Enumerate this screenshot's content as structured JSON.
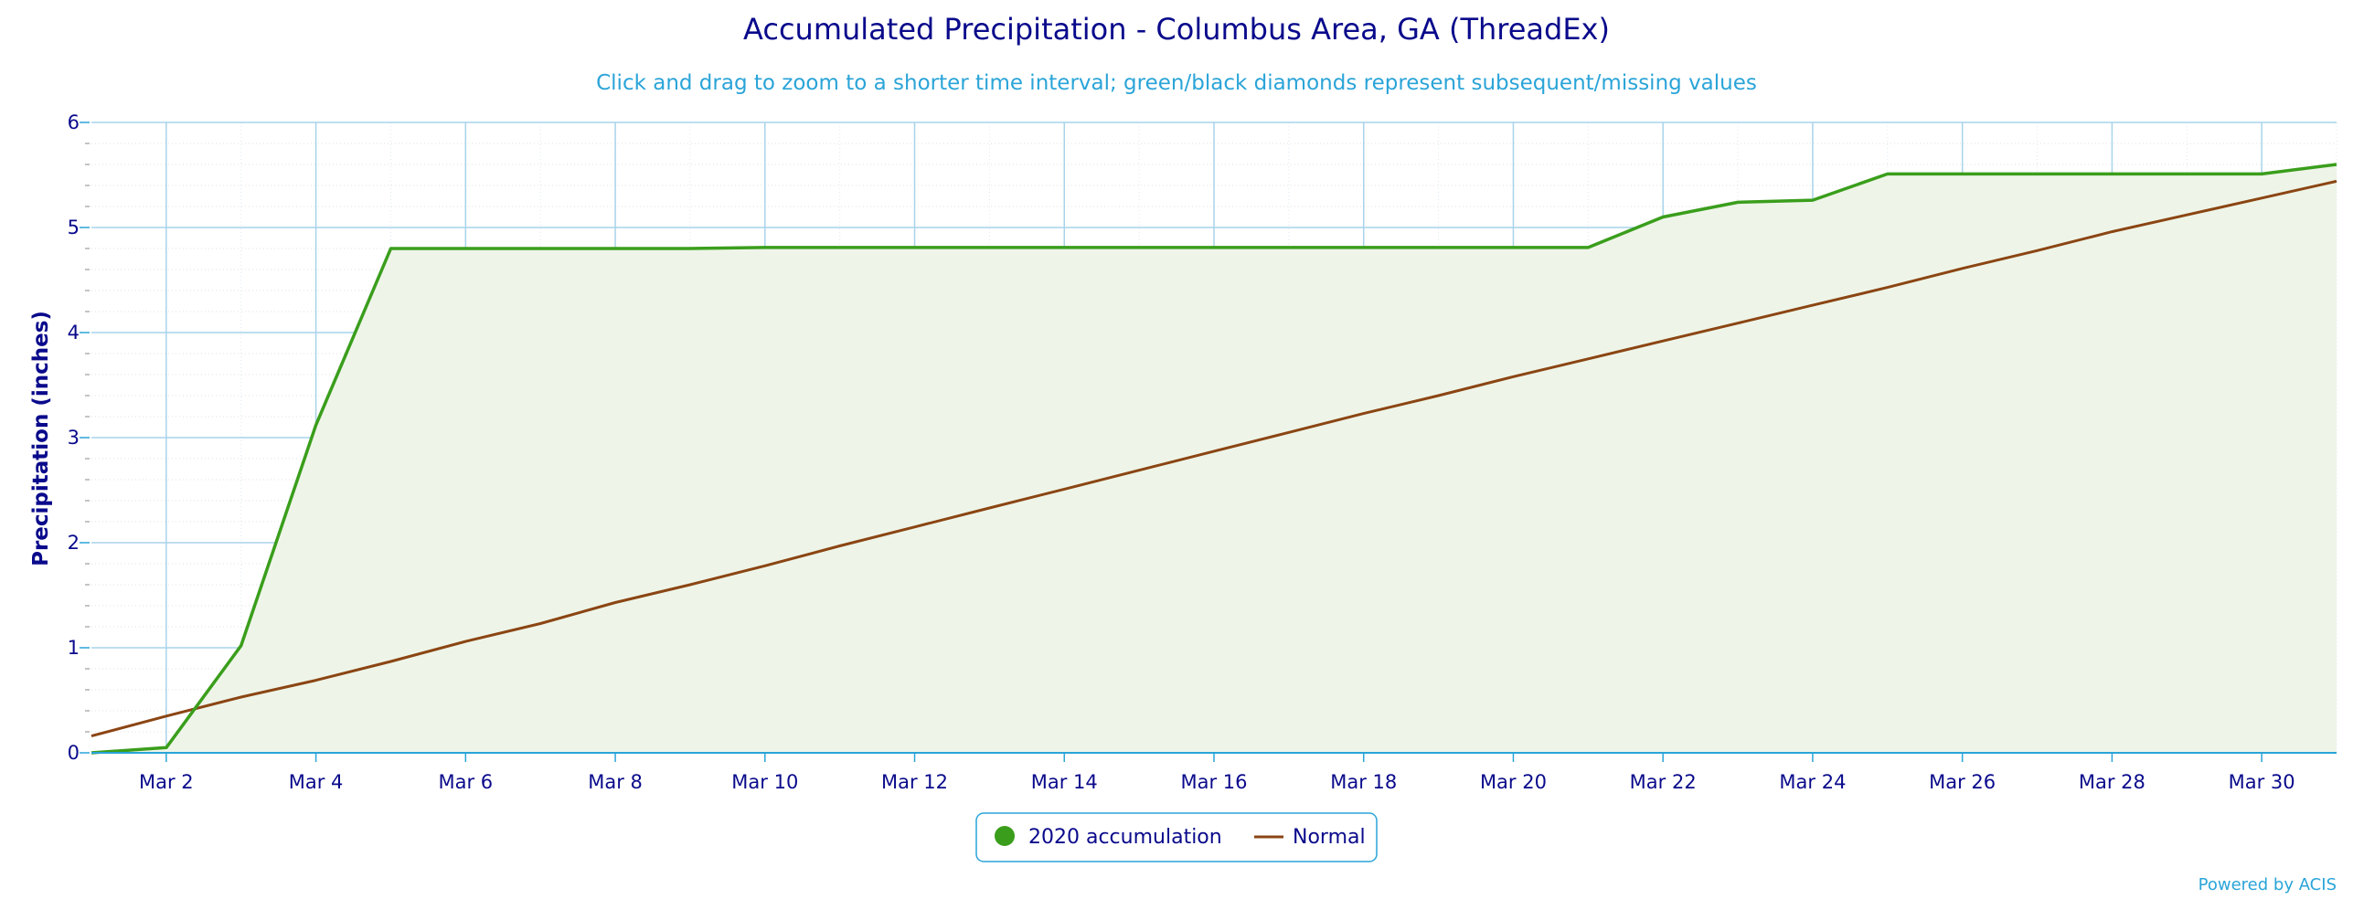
{
  "chart_data": {
    "type": "area",
    "title": "Accumulated Precipitation - Columbus Area, GA (ThreadEx)",
    "subtitle": "Click and drag to zoom to a shorter time interval; green/black diamonds represent subsequent/missing values",
    "ylabel": "Precipitation (inches)",
    "xlabel": "",
    "ylim": [
      0,
      6
    ],
    "y_ticks": [
      0,
      1,
      2,
      3,
      4,
      5,
      6
    ],
    "xlim": [
      "Mar 1",
      "Mar 31"
    ],
    "x_tick_labels": [
      "Mar 2",
      "Mar 4",
      "Mar 6",
      "Mar 8",
      "Mar 10",
      "Mar 12",
      "Mar 14",
      "Mar 16",
      "Mar 18",
      "Mar 20",
      "Mar 22",
      "Mar 24",
      "Mar 26",
      "Mar 28",
      "Mar 30"
    ],
    "x_tick_days": [
      2,
      4,
      6,
      8,
      10,
      12,
      14,
      16,
      18,
      20,
      22,
      24,
      26,
      28,
      30
    ],
    "grid": true,
    "legend_position": "bottom-center",
    "x_day": [
      1,
      2,
      3,
      4,
      5,
      6,
      7,
      8,
      9,
      10,
      11,
      12,
      13,
      14,
      15,
      16,
      17,
      18,
      19,
      20,
      21,
      22,
      23,
      24,
      25,
      26,
      27,
      28,
      29,
      30,
      31
    ],
    "series": [
      {
        "name": "2020 accumulation",
        "color": "#3a9e1c",
        "fill": "#eef5e8",
        "marker": "circle",
        "values": [
          0.0,
          0.05,
          1.02,
          3.12,
          4.8,
          4.8,
          4.8,
          4.8,
          4.8,
          4.81,
          4.81,
          4.81,
          4.81,
          4.81,
          4.81,
          4.81,
          4.81,
          4.81,
          4.81,
          4.81,
          4.81,
          5.1,
          5.24,
          5.26,
          5.51,
          5.51,
          5.51,
          5.51,
          5.51,
          5.51,
          5.6
        ]
      },
      {
        "name": "Normal",
        "color": "#8b4513",
        "values": [
          0.16,
          0.35,
          0.53,
          0.69,
          0.87,
          1.06,
          1.23,
          1.43,
          1.6,
          1.78,
          1.97,
          2.15,
          2.33,
          2.51,
          2.69,
          2.87,
          3.05,
          3.23,
          3.4,
          3.58,
          3.75,
          3.92,
          4.09,
          4.26,
          4.43,
          4.61,
          4.78,
          4.96,
          5.12,
          5.28,
          5.44
        ]
      }
    ]
  },
  "credit": "Powered by ACIS"
}
